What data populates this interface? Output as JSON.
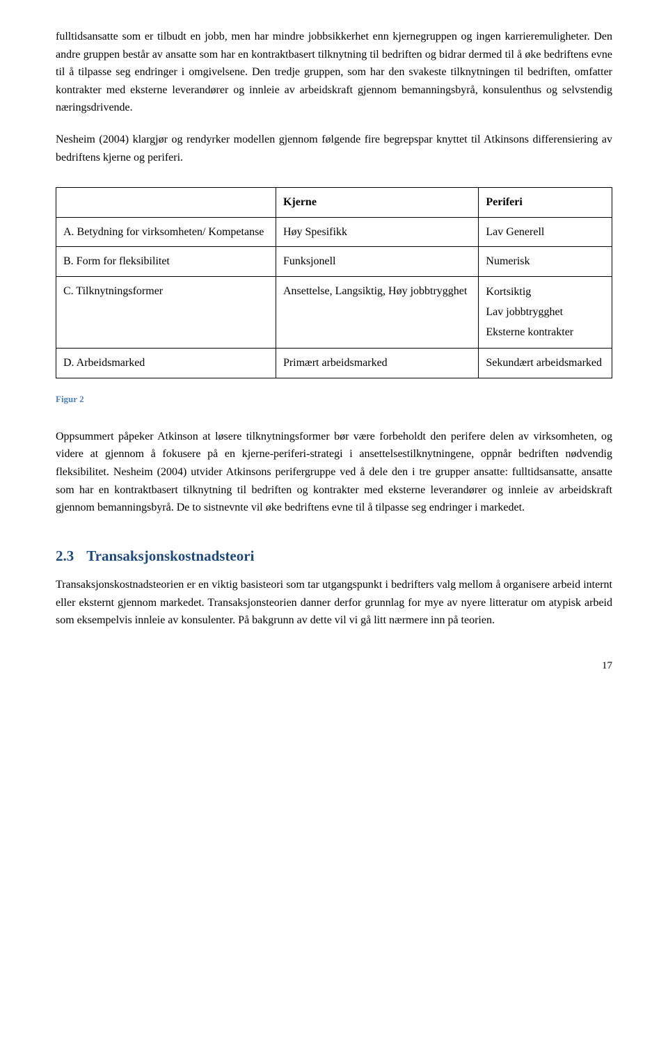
{
  "paragraphs": {
    "p1": "fulltidsansatte som er tilbudt en jobb, men har mindre jobbsikkerhet enn kjernegruppen og ingen karrieremuligheter. Den andre gruppen består av ansatte som har en kontraktbasert tilknytning til bedriften og bidrar dermed til å øke bedriftens evne til å tilpasse seg endringer i omgivelsene. Den tredje gruppen, som har den svakeste tilknytningen til bedriften, omfatter kontrakter med eksterne leverandører og innleie av arbeidskraft gjennom bemanningsbyrå, konsulenthus og selvstendig næringsdrivende.",
    "p2": "Nesheim (2004) klargjør og rendyrker modellen gjennom følgende fire begrepspar knyttet til Atkinsons differensiering av bedriftens kjerne og periferi.",
    "p3": "Oppsummert påpeker Atkinson at løsere tilknytningsformer bør være forbeholdt den perifere delen av virksomheten, og videre at gjennom å fokusere på en kjerne-periferi-strategi i ansettelsestilknytningene, oppnår bedriften nødvendig fleksibilitet. Nesheim (2004) utvider Atkinsons perifergruppe ved å dele den i tre grupper ansatte: fulltidsansatte, ansatte som har en kontraktbasert tilknytning til bedriften og kontrakter med eksterne leverandører og innleie av arbeidskraft gjennom bemanningsbyrå. De to sistnevnte vil øke bedriftens evne til å tilpasse seg endringer i markedet.",
    "p4": "Transaksjonskostnadsteorien er en viktig basisteori som tar utgangspunkt i bedrifters valg mellom å organisere arbeid internt eller eksternt gjennom markedet. Transaksjonsteorien danner derfor grunnlag for mye av nyere litteratur om atypisk arbeid som eksempelvis innleie av konsulenter. På bakgrunn av dette vil vi gå litt nærmere inn på teorien."
  },
  "table": {
    "columns": [
      "",
      "Kjerne",
      "Periferi"
    ],
    "rows": [
      {
        "label": "A. Betydning for virksomheten/ Kompetanse",
        "kjerne": "Høy Spesifikk",
        "periferi": "Lav Generell"
      },
      {
        "label": "B. Form for fleksibilitet",
        "kjerne": "Funksjonell",
        "periferi": "Numerisk"
      },
      {
        "label": "C. Tilknytningsformer",
        "kjerne": "Ansettelse, Langsiktig, Høy jobbtrygghet",
        "periferi": "Kortsiktig\nLav jobbtrygghet\nEksterne kontrakter"
      },
      {
        "label": "D. Arbeidsmarked",
        "kjerne": "Primært arbeidsmarked",
        "periferi": "Sekundært arbeidsmarked"
      }
    ]
  },
  "figure_caption": "Figur 2",
  "section": {
    "number": "2.3",
    "title": "Transaksjonskostnadsteori"
  },
  "page_number": "17",
  "colors": {
    "heading": "#1f497d",
    "caption": "#4f81bd",
    "text": "#000000",
    "border": "#000000",
    "background": "#ffffff"
  },
  "fonts": {
    "body_family": "Times New Roman",
    "body_size_pt": 12,
    "heading_size_pt": 16,
    "caption_size_pt": 10
  }
}
